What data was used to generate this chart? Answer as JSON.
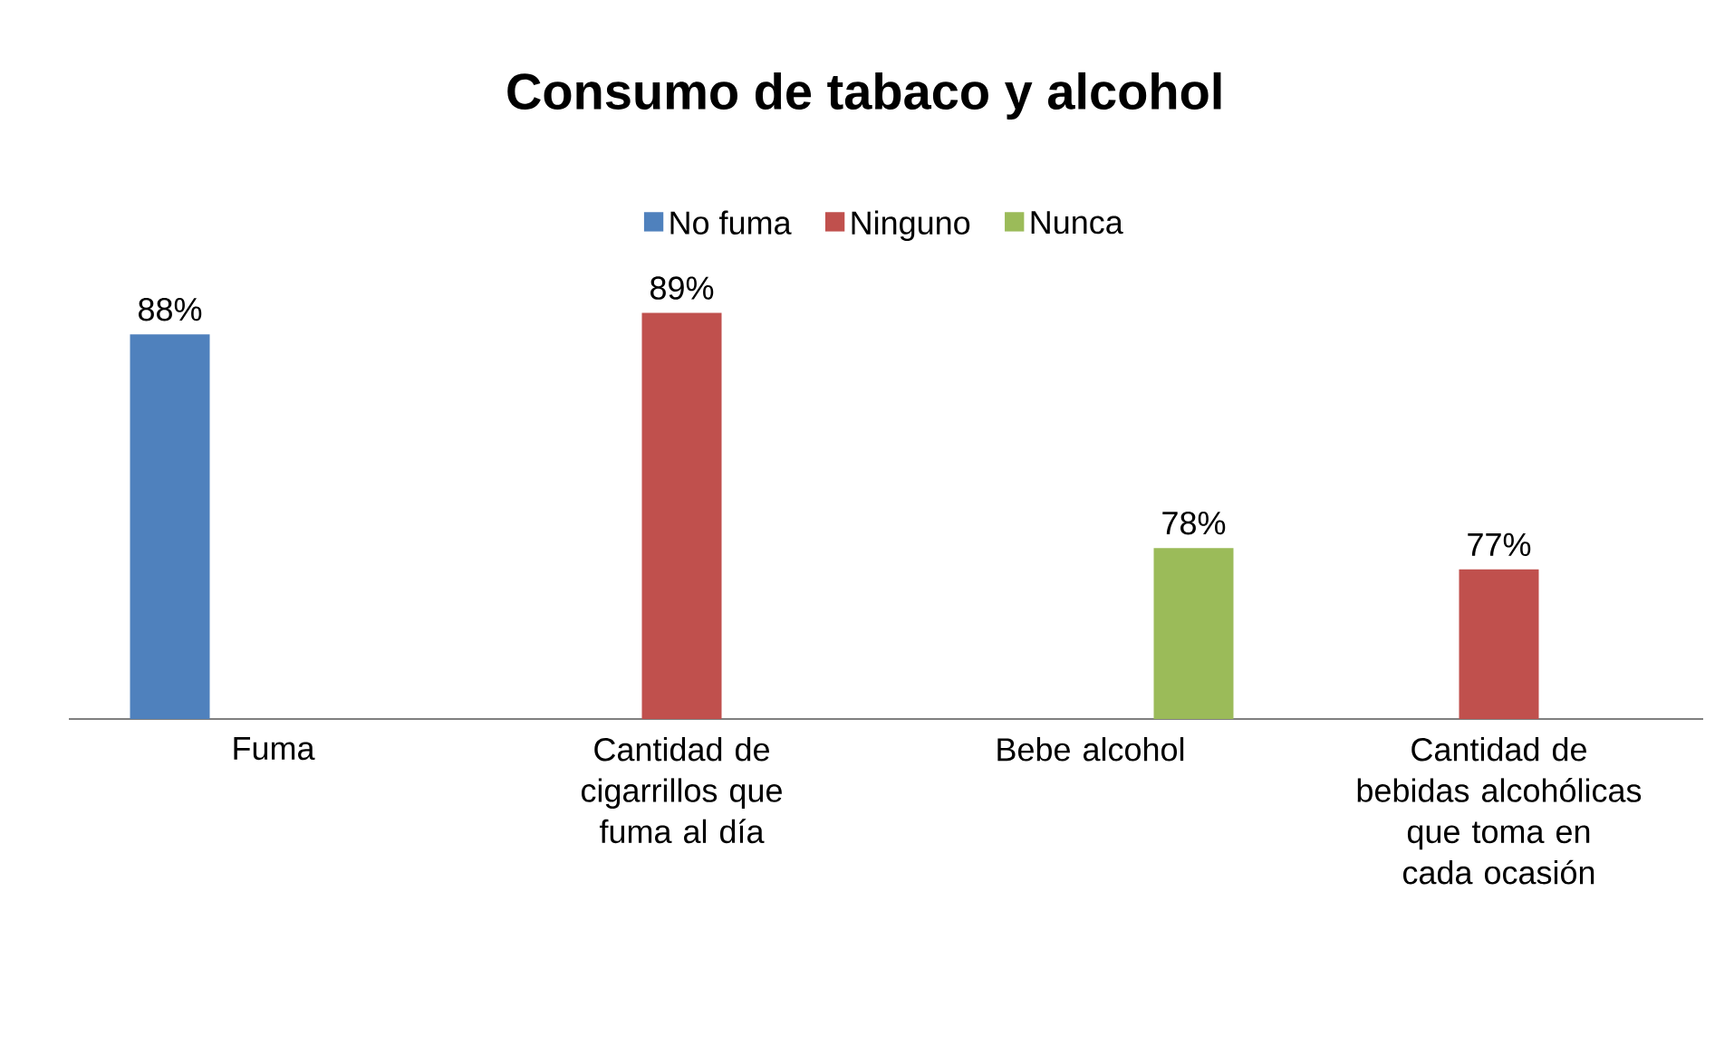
{
  "chart_data": {
    "type": "bar",
    "title": "Consumo de tabaco y alcohol",
    "categories": [
      "Fuma",
      "Cantidad de cigarrillos que fuma al día",
      "Bebe alcohol",
      "Cantidad de bebidas alcohólicas que toma en cada ocasión"
    ],
    "series": [
      {
        "name": "No fuma",
        "color": "#4f81bd",
        "values": [
          88,
          null,
          null,
          null
        ],
        "value_labels": [
          "88%",
          null,
          null,
          null
        ]
      },
      {
        "name": "Ninguno",
        "color": "#c0504d",
        "values": [
          null,
          89,
          null,
          77
        ],
        "value_labels": [
          null,
          "89%",
          null,
          "77%"
        ]
      },
      {
        "name": "Nunca",
        "color": "#9bbb59",
        "values": [
          null,
          null,
          78,
          null
        ],
        "value_labels": [
          null,
          null,
          "78%",
          null
        ]
      }
    ],
    "ylim": [
      70,
      89
    ],
    "legend": "top"
  }
}
